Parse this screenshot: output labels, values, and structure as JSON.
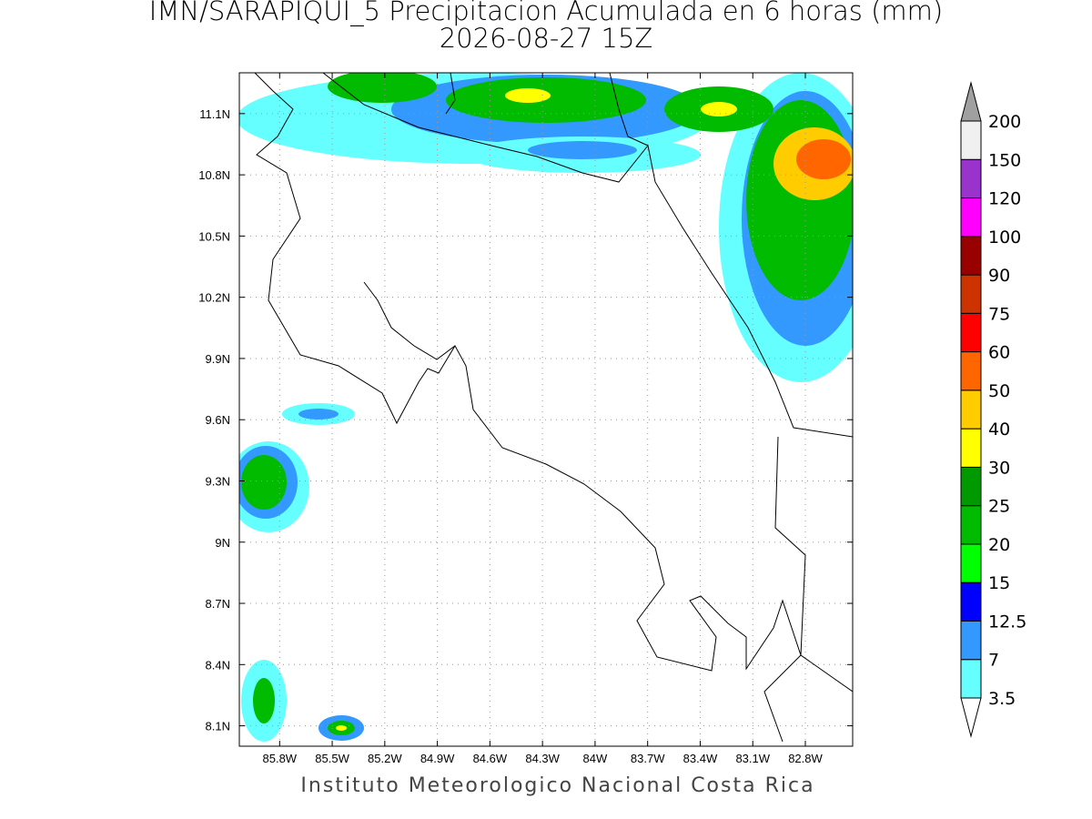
{
  "title": "IMN/SARAPIQUI_5 Precipitacion Acumulada en 6 horas (mm)",
  "subtitle": "2026-08-27 15Z",
  "map": {
    "xlim": [
      -86.03,
      -82.53
    ],
    "ylim": [
      8.0,
      11.3
    ],
    "xticks": [
      {
        "value": -85.8,
        "label": "85.8W"
      },
      {
        "value": -85.5,
        "label": "85.5W"
      },
      {
        "value": -85.2,
        "label": "85.2W"
      },
      {
        "value": -84.9,
        "label": "84.9W"
      },
      {
        "value": -84.6,
        "label": "84.6W"
      },
      {
        "value": -84.3,
        "label": "84.3W"
      },
      {
        "value": -84,
        "label": "84W"
      },
      {
        "value": -83.7,
        "label": "83.7W"
      },
      {
        "value": -83.4,
        "label": "83.4W"
      },
      {
        "value": -83.1,
        "label": "83.1W"
      },
      {
        "value": -82.8,
        "label": "82.8W"
      }
    ],
    "yticks": [
      {
        "value": 8.1,
        "label": "8.1N"
      },
      {
        "value": 8.4,
        "label": "8.4N"
      },
      {
        "value": 8.7,
        "label": "8.7N"
      },
      {
        "value": 9,
        "label": "9N"
      },
      {
        "value": 9.3,
        "label": "9.3N"
      },
      {
        "value": 9.6,
        "label": "9.6N"
      },
      {
        "value": 9.9,
        "label": "9.9N"
      },
      {
        "value": 10.2,
        "label": "10.2N"
      },
      {
        "value": 10.5,
        "label": "10.5N"
      },
      {
        "value": 10.8,
        "label": "10.8N"
      },
      {
        "value": 11.1,
        "label": "11.1N"
      }
    ]
  },
  "colorbar": {
    "levels": [
      3.5,
      7,
      12.5,
      15,
      20,
      25,
      30,
      40,
      50,
      60,
      75,
      90,
      100,
      120,
      150,
      200
    ],
    "colors": [
      "#66ffff",
      "#3399ff",
      "#0000ff",
      "#00ff00",
      "#00bb00",
      "#009900",
      "#ffff00",
      "#ffcc00",
      "#ff6600",
      "#ff0000",
      "#cc3300",
      "#990000",
      "#ff00ff",
      "#9933cc",
      "#f0f0f0"
    ],
    "under_color": "#ffffff",
    "over_color": "#a0a0a0"
  },
  "footer": "Instituto Meteorologico Nacional Costa Rica"
}
